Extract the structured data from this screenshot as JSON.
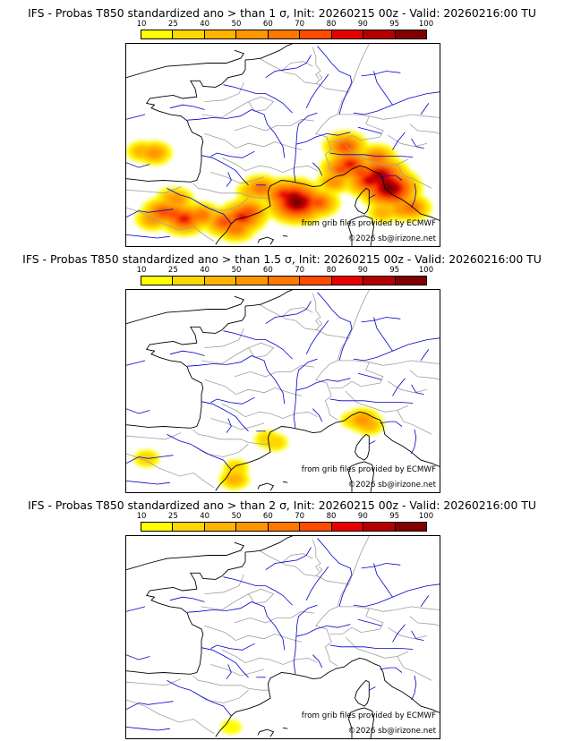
{
  "legend": {
    "ticks": [
      "10",
      "25",
      "40",
      "50",
      "60",
      "70",
      "80",
      "90",
      "95",
      "100"
    ],
    "colors": [
      "#ffff00",
      "#ffd700",
      "#ffb400",
      "#ff9600",
      "#ff7800",
      "#ff4b00",
      "#e60000",
      "#b40000",
      "#820000",
      "#500000"
    ]
  },
  "map_colors": {
    "coast": "#000000",
    "borders": "#a0a0a0",
    "rivers": "#0000cc"
  },
  "panels": [
    {
      "title": "IFS - Probas T850  standardized ano > than 1 σ, Init: 20260215 00z - Valid: 20260216:00 TU",
      "credit_source": "from grib files provided by ECMWF",
      "credit_copyright": "©2026 sb@irizone.net",
      "blobs": [
        {
          "lon": -5.0,
          "lat": 45.3,
          "level": 2
        },
        {
          "lon": -4.2,
          "lat": 45.2,
          "level": 3
        },
        {
          "lon": -3.1,
          "lat": 42.4,
          "level": 2
        },
        {
          "lon": -2.8,
          "lat": 42.3,
          "level": 3
        },
        {
          "lon": -3.6,
          "lat": 41.5,
          "level": 5
        },
        {
          "lon": -3.0,
          "lat": 41.4,
          "level": 5
        },
        {
          "lon": -2.3,
          "lat": 41.1,
          "level": 6
        },
        {
          "lon": -4.3,
          "lat": 41.1,
          "level": 3
        },
        {
          "lon": -1.2,
          "lat": 41.3,
          "level": 4
        },
        {
          "lon": 0.1,
          "lat": 41.0,
          "level": 3
        },
        {
          "lon": 0.3,
          "lat": 40.9,
          "level": 5
        },
        {
          "lon": 1.0,
          "lat": 40.5,
          "level": 4
        },
        {
          "lon": 1.4,
          "lat": 41.2,
          "level": 6
        },
        {
          "lon": 1.8,
          "lat": 41.5,
          "level": 5
        },
        {
          "lon": 2.0,
          "lat": 42.8,
          "level": 2
        },
        {
          "lon": 2.6,
          "lat": 43.0,
          "level": 4
        },
        {
          "lon": 4.1,
          "lat": 42.6,
          "level": 6
        },
        {
          "lon": 4.7,
          "lat": 42.4,
          "level": 8
        },
        {
          "lon": 5.1,
          "lat": 42.2,
          "level": 8
        },
        {
          "lon": 4.9,
          "lat": 42.1,
          "level": 9
        },
        {
          "lon": 6.2,
          "lat": 42.1,
          "level": 5
        },
        {
          "lon": 5.3,
          "lat": 41.6,
          "level": 4
        },
        {
          "lon": 7.3,
          "lat": 43.4,
          "level": 3
        },
        {
          "lon": 7.8,
          "lat": 44.2,
          "level": 5
        },
        {
          "lon": 8.3,
          "lat": 44.5,
          "level": 6
        },
        {
          "lon": 8.0,
          "lat": 45.6,
          "level": 5
        },
        {
          "lon": 9.0,
          "lat": 44.0,
          "level": 5
        },
        {
          "lon": 9.6,
          "lat": 43.5,
          "level": 7
        },
        {
          "lon": 10.2,
          "lat": 43.8,
          "level": 8
        },
        {
          "lon": 10.6,
          "lat": 43.3,
          "level": 8
        },
        {
          "lon": 10.8,
          "lat": 43.0,
          "level": 9
        },
        {
          "lon": 10.0,
          "lat": 44.9,
          "level": 4
        },
        {
          "lon": 11.2,
          "lat": 42.5,
          "level": 5
        },
        {
          "lon": 10.4,
          "lat": 41.5,
          "level": 2
        },
        {
          "lon": 11.6,
          "lat": 41.7,
          "level": 3
        },
        {
          "lon": 12.2,
          "lat": 41.8,
          "level": 4
        }
      ]
    },
    {
      "title": "IFS - Probas T850  standardized ano > than 1.5 σ, Init: 20260215 00z - Valid: 20260216:00 TU",
      "credit_source": "from grib files provided by ECMWF",
      "credit_copyright": "©2026 sb@irizone.net",
      "blobs": [
        {
          "lon": 8.5,
          "lat": 43.9,
          "level": 1
        },
        {
          "lon": 9.1,
          "lat": 43.9,
          "level": 3
        },
        {
          "lon": 9.5,
          "lat": 43.6,
          "level": 2
        },
        {
          "lon": 3.0,
          "lat": 42.7,
          "level": 1
        },
        {
          "lon": 3.5,
          "lat": 42.5,
          "level": 1
        },
        {
          "lon": 1.0,
          "lat": 40.9,
          "level": 1
        },
        {
          "lon": 0.9,
          "lat": 40.2,
          "level": 2
        },
        {
          "lon": -4.7,
          "lat": 41.5,
          "level": 1
        }
      ]
    },
    {
      "title": "IFS - Probas T850  standardized ano > than 2 σ, Init: 20260215 00z - Valid: 20260216:00 TU",
      "credit_source": "from grib files provided by ECMWF",
      "credit_copyright": "©2026 sb@irizone.net",
      "blobs": [
        {
          "lon": 0.7,
          "lat": 40.1,
          "level": 0
        }
      ]
    }
  ]
}
